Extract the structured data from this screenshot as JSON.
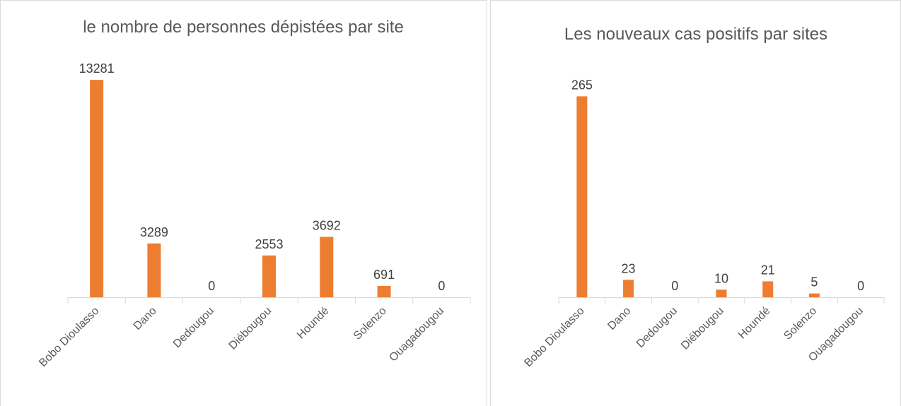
{
  "chart_data": [
    {
      "type": "bar",
      "title": "le nombre de personnes dépistées par site",
      "categories": [
        "Bobo Dioulasso",
        "Dano",
        "Dedougou",
        "Diébougou",
        "Houndé",
        "Solenzo",
        "Ouagadougou"
      ],
      "values": [
        13281,
        3289,
        0,
        2553,
        3692,
        691,
        0
      ],
      "color": "#ed7d31"
    },
    {
      "type": "bar",
      "title": "Les nouveaux cas positifs par sites",
      "categories": [
        "Bobo Dioulasso",
        "Dano",
        "Dedougou",
        "Diébougou",
        "Houndé",
        "Solenzo",
        "Ouagadougou"
      ],
      "values": [
        265,
        23,
        0,
        10,
        21,
        5,
        0
      ],
      "color": "#ed7d31"
    }
  ]
}
